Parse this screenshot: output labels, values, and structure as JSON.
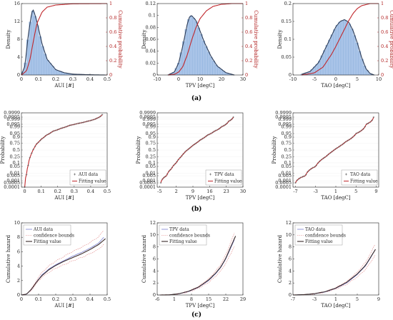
{
  "rows": [
    "(a)",
    "(b)",
    "(c)"
  ],
  "colors": {
    "density": "#2b3a55",
    "hist": "#a9c4e8",
    "cdf": "#c0282d",
    "data": "#555555",
    "fit": "#c0282d",
    "bound": "#e07b7b",
    "axis": "#222222"
  },
  "chart_data": [
    {
      "type": "area",
      "id": "a1",
      "row": "a",
      "col": 0,
      "xlabel": "AUI [#]",
      "ylabel": "Density",
      "ylabel_right": "Cumulative probability",
      "xlim": [
        0,
        0.5
      ],
      "ylim": [
        0,
        16
      ],
      "ylim_right": [
        0,
        1
      ],
      "xticks": [
        "0",
        "0.1",
        "0.2",
        "0.3",
        "0.4",
        "0.5"
      ],
      "yticks": [
        "0",
        "4",
        "8",
        "12",
        "16"
      ],
      "yticks_right": [
        "0",
        "0.2",
        "0.4",
        "0.6",
        "0.8",
        "1"
      ],
      "density": {
        "x": [
          0,
          0.02,
          0.04,
          0.06,
          0.07,
          0.09,
          0.12,
          0.15,
          0.2,
          0.25,
          0.3,
          0.4,
          0.5
        ],
        "y": [
          0,
          2,
          9,
          14,
          14.6,
          12,
          7,
          3.5,
          1.2,
          0.5,
          0.2,
          0.05,
          0
        ]
      },
      "cdf": {
        "x": [
          0,
          0.03,
          0.05,
          0.07,
          0.09,
          0.12,
          0.15,
          0.2,
          0.3,
          0.5
        ],
        "y": [
          0,
          0.06,
          0.22,
          0.48,
          0.72,
          0.88,
          0.95,
          0.98,
          0.997,
          1
        ]
      }
    },
    {
      "type": "area",
      "id": "a2",
      "row": "a",
      "col": 1,
      "xlabel": "TPV [degC]",
      "ylabel": "Density",
      "ylabel_right": "Cumulative probability",
      "xlim": [
        -10,
        30
      ],
      "ylim": [
        0,
        0.12
      ],
      "ylim_right": [
        0,
        1
      ],
      "xticks": [
        "-10",
        "0",
        "10",
        "20",
        "30"
      ],
      "yticks": [
        "0",
        "0.02",
        "0.04",
        "0.06",
        "0.08",
        "0.1",
        "0.12"
      ],
      "yticks_right": [
        "0",
        "0.2",
        "0.4",
        "0.6",
        "0.8",
        "1"
      ],
      "density": {
        "x": [
          -5,
          -2,
          0,
          2,
          4,
          5,
          6,
          8,
          10,
          12,
          15,
          18,
          22,
          26
        ],
        "y": [
          0,
          0.005,
          0.02,
          0.05,
          0.085,
          0.097,
          0.1,
          0.092,
          0.074,
          0.055,
          0.032,
          0.015,
          0.004,
          0
        ]
      },
      "cdf": {
        "x": [
          -5,
          -2,
          0,
          2,
          4,
          6,
          8,
          10,
          13,
          16,
          20,
          25,
          30
        ],
        "y": [
          0,
          0.01,
          0.04,
          0.12,
          0.28,
          0.48,
          0.66,
          0.79,
          0.9,
          0.96,
          0.99,
          1,
          1
        ]
      }
    },
    {
      "type": "area",
      "id": "a3",
      "row": "a",
      "col": 2,
      "xlabel": "TAO [degC]",
      "ylabel": "Density",
      "ylabel_right": "Cumulative probability",
      "xlim": [
        -10,
        10
      ],
      "ylim": [
        0,
        0.2
      ],
      "ylim_right": [
        0,
        1
      ],
      "xticks": [
        "-10",
        "-5",
        "0",
        "5",
        "10"
      ],
      "yticks": [
        "0",
        "0.05",
        "0.1",
        "0.15",
        "0.2"
      ],
      "yticks_right": [
        "0",
        "0.2",
        "0.4",
        "0.6",
        "0.8",
        "1"
      ],
      "density": {
        "x": [
          -8,
          -6,
          -4,
          -2,
          0,
          1,
          2,
          3,
          4,
          5,
          6,
          7,
          8,
          9
        ],
        "y": [
          0.002,
          0.01,
          0.035,
          0.085,
          0.135,
          0.15,
          0.155,
          0.148,
          0.125,
          0.09,
          0.05,
          0.018,
          0.004,
          0
        ]
      },
      "cdf": {
        "x": [
          -8,
          -5,
          -3,
          -1,
          0,
          1,
          2,
          3,
          4,
          5,
          6,
          8,
          10
        ],
        "y": [
          0,
          0.03,
          0.11,
          0.29,
          0.4,
          0.52,
          0.64,
          0.76,
          0.86,
          0.93,
          0.97,
          1,
          1
        ]
      }
    },
    {
      "type": "scatter",
      "id": "b1",
      "row": "b",
      "col": 0,
      "xlabel": "AUI [#]",
      "ylabel": "Probability",
      "xlim": [
        -0.02,
        0.5
      ],
      "xticks": [
        "0",
        "0.1",
        "0.2",
        "0.3",
        "0.4",
        "0.5"
      ],
      "xtick_values": [
        0,
        0.1,
        0.2,
        0.3,
        0.4,
        0.5
      ],
      "yticks": [
        "0.9999",
        "0.9995",
        "0.999",
        "0.995",
        "0.99",
        "0.95",
        "0.9",
        "0.75",
        "0.5",
        "0.25",
        "0.1",
        "0.05",
        "0.01",
        "0.005",
        "0.001",
        "0.0005",
        "0.0001"
      ],
      "legend": [
        "AUI data",
        "Fitting value"
      ],
      "legend_position": "bottom-right",
      "data": {
        "x": [
          0.0,
          0.01,
          0.02,
          0.03,
          0.05,
          0.07,
          0.1,
          0.13,
          0.17,
          0.22,
          0.27,
          0.32,
          0.38,
          0.44,
          0.47
        ],
        "y": [
          0.0001,
          0.005,
          0.05,
          0.2,
          0.5,
          0.72,
          0.86,
          0.93,
          0.97,
          0.985,
          0.993,
          0.996,
          0.998,
          0.9993,
          0.9998
        ]
      }
    },
    {
      "type": "scatter",
      "id": "b2",
      "row": "b",
      "col": 1,
      "xlabel": "TPV [degC]",
      "ylabel": "Probability",
      "xlim": [
        -6,
        30
      ],
      "xticks": [
        "-5",
        "2",
        "9",
        "16",
        "23",
        "30"
      ],
      "xtick_values": [
        -5,
        2,
        9,
        16,
        23,
        30
      ],
      "yticks": [
        "0.9999",
        "0.9995",
        "0.999",
        "0.995",
        "0.99",
        "0.95",
        "0.9",
        "0.75",
        "0.5",
        "0.25",
        "0.1",
        "0.05",
        "0.01",
        "0.005",
        "0.001",
        "0.0005",
        "0.0001"
      ],
      "legend": [
        "TPV data",
        "Fitting value"
      ],
      "legend_position": "bottom-right",
      "data": {
        "x": [
          -4.5,
          -2,
          0,
          2,
          4,
          6,
          9,
          12,
          15,
          18,
          21,
          24,
          26
        ],
        "y": [
          0.0005,
          0.005,
          0.03,
          0.1,
          0.25,
          0.45,
          0.68,
          0.84,
          0.93,
          0.97,
          0.99,
          0.998,
          0.9995
        ]
      }
    },
    {
      "type": "scatter",
      "id": "b3",
      "row": "b",
      "col": 2,
      "xlabel": "TAO [degC]",
      "ylabel": "Probability",
      "xlim": [
        -7.5,
        9.5
      ],
      "xticks": [
        "-7",
        "-3",
        "1",
        "5",
        "9"
      ],
      "xtick_values": [
        -7,
        -3,
        1,
        5,
        9
      ],
      "yticks": [
        "0.9999",
        "0.9995",
        "0.999",
        "0.995",
        "0.99",
        "0.95",
        "0.9",
        "0.75",
        "0.5",
        "0.25",
        "0.1",
        "0.05",
        "0.01",
        "0.005",
        "0.001",
        "0.0005",
        "0.0001"
      ],
      "legend": [
        "TAO data",
        "Fitting value"
      ],
      "legend_position": "bottom-right",
      "data": {
        "x": [
          -7,
          -5,
          -3,
          -1,
          1,
          3,
          5,
          7,
          8.5
        ],
        "y": [
          0.0005,
          0.005,
          0.05,
          0.25,
          0.55,
          0.8,
          0.95,
          0.995,
          0.9995
        ]
      }
    },
    {
      "type": "line",
      "id": "c1",
      "row": "c",
      "col": 0,
      "xlabel": "AUI [#]",
      "ylabel": "Cumulative hazard",
      "xlim": [
        0,
        0.5
      ],
      "ylim": [
        0,
        10
      ],
      "xticks": [
        "0",
        "0.1",
        "0.2",
        "0.3",
        "0.4",
        "0.5"
      ],
      "yticks": [
        "0",
        "2",
        "4",
        "6",
        "8",
        "10"
      ],
      "legend": [
        "AUI data",
        "confidence bounds",
        "Fitting value"
      ],
      "legend_position": "top-left",
      "data": {
        "x": [
          0,
          0.03,
          0.06,
          0.09,
          0.12,
          0.16,
          0.2,
          0.25,
          0.3,
          0.35,
          0.4,
          0.45,
          0.48
        ],
        "y": [
          0,
          0.1,
          0.8,
          1.9,
          2.8,
          3.6,
          4.2,
          4.8,
          5.4,
          5.9,
          6.5,
          7.2,
          8
        ]
      },
      "fit": {
        "x": [
          0,
          0.03,
          0.06,
          0.09,
          0.12,
          0.16,
          0.2,
          0.25,
          0.3,
          0.35,
          0.4,
          0.45,
          0.49
        ],
        "y": [
          0,
          0.12,
          0.85,
          1.85,
          2.7,
          3.5,
          4.1,
          4.7,
          5.2,
          5.7,
          6.3,
          7,
          7.8
        ]
      }
    },
    {
      "type": "line",
      "id": "c2",
      "row": "c",
      "col": 1,
      "xlabel": "TPV [degC]",
      "ylabel": "Cumulative hazard",
      "xlim": [
        -6,
        29
      ],
      "ylim": [
        0,
        12
      ],
      "xticks": [
        "-6",
        "1",
        "8",
        "15",
        "22",
        "29"
      ],
      "yticks": [
        "0",
        "2",
        "4",
        "6",
        "8",
        "10",
        "12"
      ],
      "legend": [
        "TPV data",
        "confidence bounds",
        "Fitting value"
      ],
      "legend_position": "top-left",
      "data": {
        "x": [
          -5,
          -1,
          3,
          7,
          11,
          15,
          18,
          20,
          22,
          24,
          25.5
        ],
        "y": [
          0,
          0.02,
          0.2,
          0.6,
          1.3,
          2.4,
          3.6,
          4.6,
          6,
          7.8,
          9.2
        ]
      },
      "fit": {
        "x": [
          -5,
          -1,
          3,
          7,
          11,
          15,
          18,
          20,
          22,
          24,
          26
        ],
        "y": [
          0,
          0.03,
          0.22,
          0.65,
          1.35,
          2.5,
          3.7,
          4.7,
          6.1,
          8,
          9.8
        ]
      }
    },
    {
      "type": "line",
      "id": "c3",
      "row": "c",
      "col": 2,
      "xlabel": "TAO [degC]",
      "ylabel": "Cumulative hazard",
      "xlim": [
        -7,
        9
      ],
      "ylim": [
        0,
        12
      ],
      "xticks": [
        "-7",
        "-3",
        "1",
        "5",
        "9"
      ],
      "yticks": [
        "0",
        "2",
        "4",
        "6",
        "8",
        "10",
        "12"
      ],
      "legend": [
        "TAO data",
        "confidence bounds",
        "Fitting value"
      ],
      "legend_position": "top-left",
      "data": {
        "x": [
          -7,
          -5,
          -3,
          -1,
          1,
          3,
          5,
          6.5,
          7.5,
          8.3
        ],
        "y": [
          0,
          0.05,
          0.2,
          0.5,
          1.1,
          2,
          3.4,
          4.8,
          6.2,
          7.5
        ]
      },
      "fit": {
        "x": [
          -7,
          -5,
          -3,
          -1,
          1,
          3,
          5,
          6.5,
          7.5,
          8.4
        ],
        "y": [
          0,
          0.06,
          0.22,
          0.55,
          1.15,
          2.1,
          3.5,
          4.9,
          6.3,
          7.6
        ]
      }
    }
  ]
}
